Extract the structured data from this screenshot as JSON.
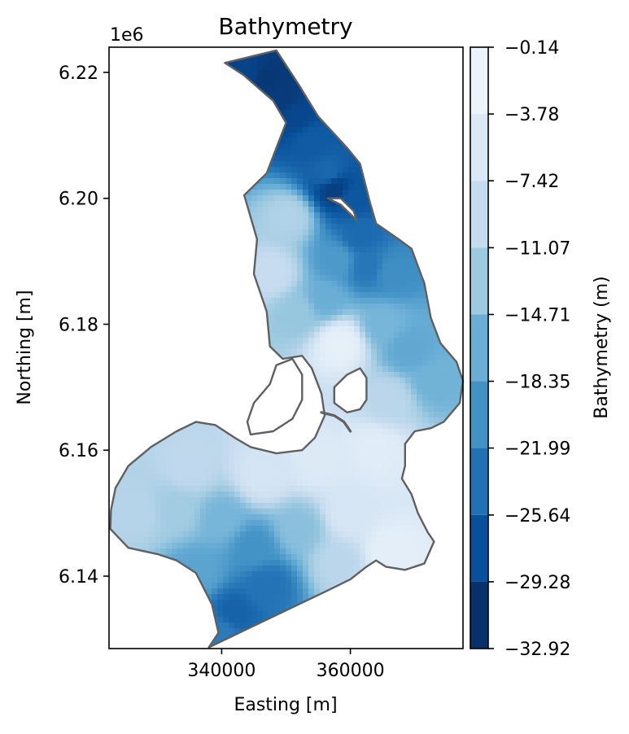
{
  "chart_data": {
    "type": "heatmap",
    "title": "Bathymetry",
    "xlabel": "Easting [m]",
    "ylabel": "Northing [m]",
    "y_offset_label": "1e6",
    "xlim": [
      322500,
      377500
    ],
    "ylim": [
      6128500,
      6224000
    ],
    "x_ticks": [
      340000,
      360000
    ],
    "x_tick_labels": [
      "340000",
      "360000"
    ],
    "y_ticks": [
      6140000,
      6160000,
      6180000,
      6200000,
      6220000
    ],
    "y_tick_labels": [
      "6.14",
      "6.16",
      "6.18",
      "6.20",
      "6.22"
    ],
    "grid": false,
    "colorbar": {
      "label": "Bathymetry (m)",
      "colormap": "Blues_r",
      "range": [
        -32.92,
        -0.14
      ],
      "levels": [
        -32.92,
        -29.28,
        -25.64,
        -21.99,
        -18.35,
        -14.71,
        -11.07,
        -7.42,
        -3.78,
        -0.14
      ],
      "level_labels": [
        "−32.92",
        "−29.28",
        "−25.64",
        "−21.99",
        "−18.35",
        "−14.71",
        "−11.07",
        "−7.42",
        "−3.78",
        "−0.14"
      ],
      "colors": [
        "#08306b",
        "#08509b",
        "#2171b5",
        "#4292c6",
        "#6aaed6",
        "#9ecae1",
        "#c6dbef",
        "#dbe9f6",
        "#ebf3fb"
      ]
    },
    "boundary_color": "#606060",
    "domain_outline": [
      [
        338000,
        6128700
      ],
      [
        339500,
        6131000
      ],
      [
        338500,
        6135500
      ],
      [
        336000,
        6140500
      ],
      [
        333000,
        6142500
      ],
      [
        330000,
        6143500
      ],
      [
        325500,
        6144500
      ],
      [
        322700,
        6147500
      ],
      [
        322800,
        6150500
      ],
      [
        323500,
        6154000
      ],
      [
        325500,
        6157500
      ],
      [
        329000,
        6160500
      ],
      [
        333000,
        6163000
      ],
      [
        336000,
        6164500
      ],
      [
        339000,
        6164000
      ],
      [
        342000,
        6162000
      ],
      [
        344500,
        6160500
      ],
      [
        348500,
        6159500
      ],
      [
        352500,
        6160000
      ],
      [
        354500,
        6162000
      ],
      [
        356000,
        6165500
      ],
      [
        355500,
        6169000
      ],
      [
        354000,
        6173000
      ],
      [
        352500,
        6175000
      ],
      [
        349500,
        6174500
      ],
      [
        347500,
        6176500
      ],
      [
        347000,
        6182000
      ],
      [
        345000,
        6188000
      ],
      [
        345500,
        6193500
      ],
      [
        343500,
        6200500
      ],
      [
        347000,
        6204000
      ],
      [
        348500,
        6208000
      ],
      [
        350000,
        6212000
      ],
      [
        348000,
        6215500
      ],
      [
        343500,
        6219500
      ],
      [
        340500,
        6221500
      ],
      [
        348500,
        6223500
      ],
      [
        352000,
        6218000
      ],
      [
        355000,
        6213000
      ],
      [
        359500,
        6208000
      ],
      [
        361500,
        6205500
      ],
      [
        363000,
        6199500
      ],
      [
        364000,
        6196000
      ],
      [
        367500,
        6193500
      ],
      [
        369500,
        6192000
      ],
      [
        371500,
        6186500
      ],
      [
        372500,
        6181000
      ],
      [
        374000,
        6177000
      ],
      [
        376500,
        6174000
      ],
      [
        377500,
        6171000
      ],
      [
        377000,
        6167500
      ],
      [
        374500,
        6164500
      ],
      [
        372500,
        6163500
      ],
      [
        370000,
        6163000
      ],
      [
        368500,
        6161000
      ],
      [
        368500,
        6157500
      ],
      [
        368000,
        6155500
      ],
      [
        369500,
        6153000
      ],
      [
        370500,
        6150000
      ],
      [
        372000,
        6147000
      ],
      [
        373000,
        6145500
      ],
      [
        371500,
        6142000
      ],
      [
        368500,
        6141000
      ],
      [
        365500,
        6141500
      ],
      [
        364000,
        6142500
      ],
      [
        362500,
        6141500
      ],
      [
        360000,
        6139500
      ],
      [
        356000,
        6137500
      ],
      [
        338000,
        6128700
      ]
    ],
    "islands": [
      [
        [
          344500,
          6162500
        ],
        [
          344000,
          6164500
        ],
        [
          345000,
          6167500
        ],
        [
          347500,
          6170500
        ],
        [
          348500,
          6173500
        ],
        [
          351000,
          6174500
        ],
        [
          352500,
          6172000
        ],
        [
          352500,
          6168000
        ],
        [
          351000,
          6165000
        ],
        [
          348000,
          6163000
        ],
        [
          344500,
          6162500
        ]
      ],
      [
        [
          356500,
          6200000
        ],
        [
          358500,
          6199000
        ],
        [
          360000,
          6197500
        ],
        [
          361000,
          6196500
        ],
        [
          360500,
          6198000
        ],
        [
          358500,
          6200000
        ],
        [
          356500,
          6200000
        ]
      ],
      [
        [
          357500,
          6170000
        ],
        [
          359500,
          6172000
        ],
        [
          361500,
          6173000
        ],
        [
          362500,
          6171500
        ],
        [
          362500,
          6168000
        ],
        [
          361500,
          6166500
        ],
        [
          359500,
          6166000
        ],
        [
          357500,
          6167500
        ],
        [
          357500,
          6170000
        ]
      ]
    ],
    "shoal_line": [
      [
        355500,
        6166000
      ],
      [
        357500,
        6165500
      ],
      [
        359000,
        6164500
      ],
      [
        360000,
        6163000
      ]
    ],
    "depth_field": [
      {
        "x": 344000,
        "y": 6220000,
        "z": -30.5
      },
      {
        "x": 347000,
        "y": 6219000,
        "z": -32.0
      },
      {
        "x": 349500,
        "y": 6216000,
        "z": -31.5
      },
      {
        "x": 351500,
        "y": 6213000,
        "z": -30.0
      },
      {
        "x": 354000,
        "y": 6209000,
        "z": -27.5
      },
      {
        "x": 356500,
        "y": 6204000,
        "z": -26.0
      },
      {
        "x": 357500,
        "y": 6201500,
        "z": -31.0
      },
      {
        "x": 360500,
        "y": 6200000,
        "z": -28.0
      },
      {
        "x": 361500,
        "y": 6194000,
        "z": -25.5
      },
      {
        "x": 362500,
        "y": 6189000,
        "z": -24.0
      },
      {
        "x": 358000,
        "y": 6190000,
        "z": -19.5
      },
      {
        "x": 366500,
        "y": 6188000,
        "z": -21.0
      },
      {
        "x": 350500,
        "y": 6197000,
        "z": -10.5
      },
      {
        "x": 348000,
        "y": 6188000,
        "z": -8.0
      },
      {
        "x": 352000,
        "y": 6182000,
        "z": -13.0
      },
      {
        "x": 356000,
        "y": 6184000,
        "z": -16.5
      },
      {
        "x": 358500,
        "y": 6177000,
        "z": -1.5
      },
      {
        "x": 365000,
        "y": 6180000,
        "z": -15.5
      },
      {
        "x": 369000,
        "y": 6176000,
        "z": -17.5
      },
      {
        "x": 373000,
        "y": 6171000,
        "z": -16.0
      },
      {
        "x": 366000,
        "y": 6168000,
        "z": -9.5
      },
      {
        "x": 355000,
        "y": 6158000,
        "z": -4.0
      },
      {
        "x": 346500,
        "y": 6156000,
        "z": -5.5
      },
      {
        "x": 335000,
        "y": 6157000,
        "z": -9.0
      },
      {
        "x": 327000,
        "y": 6150000,
        "z": -10.0
      },
      {
        "x": 333000,
        "y": 6150500,
        "z": -12.0
      },
      {
        "x": 340000,
        "y": 6149000,
        "z": -15.5
      },
      {
        "x": 345000,
        "y": 6144500,
        "z": -20.5
      },
      {
        "x": 352000,
        "y": 6147500,
        "z": -14.0
      },
      {
        "x": 347000,
        "y": 6138500,
        "z": -24.5
      },
      {
        "x": 342000,
        "y": 6134000,
        "z": -26.5
      },
      {
        "x": 340000,
        "y": 6131000,
        "z": -23.5
      },
      {
        "x": 360000,
        "y": 6150000,
        "z": -5.0
      },
      {
        "x": 366000,
        "y": 6143500,
        "z": -2.0
      },
      {
        "x": 364000,
        "y": 6160000,
        "z": -3.0
      },
      {
        "x": 336000,
        "y": 6140500,
        "z": -18.0
      },
      {
        "x": 358500,
        "y": 6142000,
        "z": -9.5
      }
    ]
  }
}
